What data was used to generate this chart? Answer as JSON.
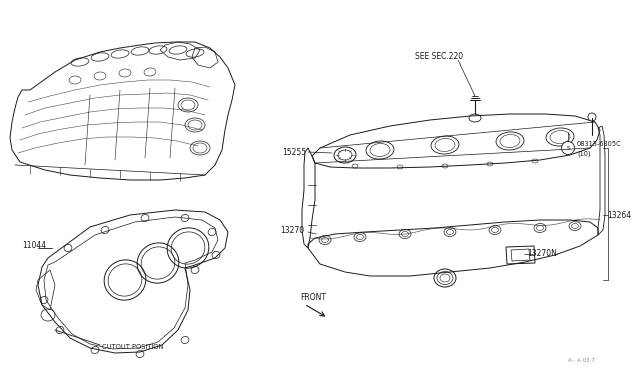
{
  "bg_color": "#ffffff",
  "line_color": "#1a1a1a",
  "fig_width": 6.4,
  "fig_height": 3.72,
  "dpi": 100,
  "labels": {
    "see_sec": "SEE SEC.220",
    "part_15255": "15255",
    "part_08313": "08313-6305C",
    "part_08313_qty": "(10)",
    "part_13270": "13270",
    "part_13270n": "13270N",
    "part_13264": "13264",
    "part_11044": "11044",
    "cutout": "CUTOUT POSITION",
    "front": "FRONT",
    "page_ref": "A·· A 03·7"
  },
  "fs": 5.5,
  "sfs": 4.8
}
